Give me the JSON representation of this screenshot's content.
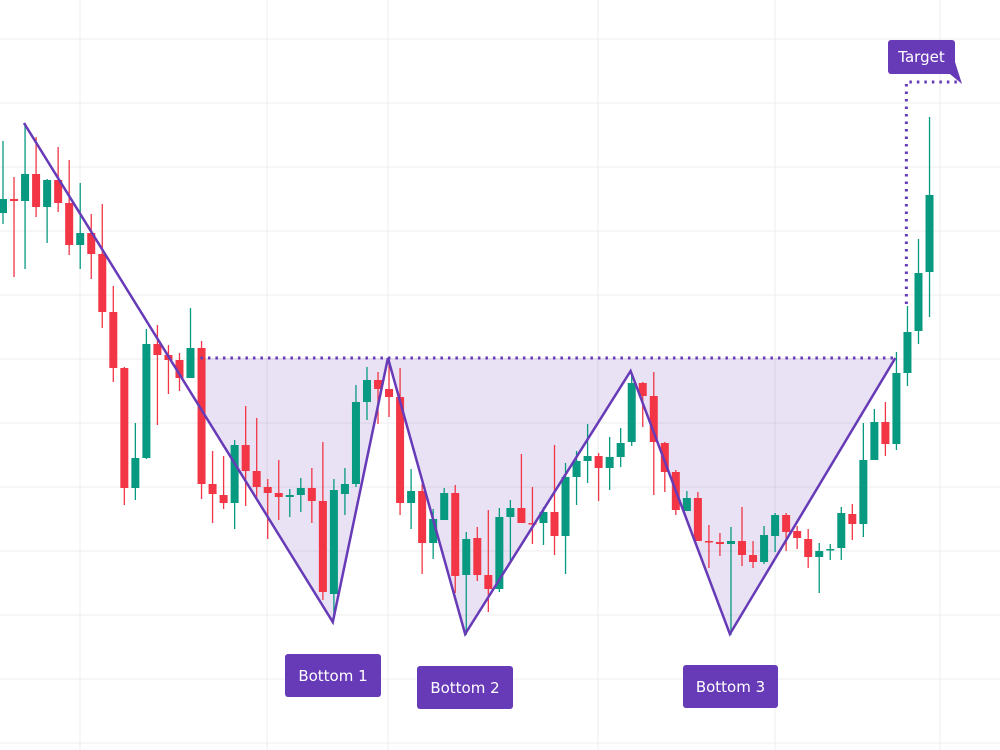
{
  "chart_data": {
    "type": "candlestick",
    "title": "",
    "xlabel": "",
    "ylabel": "",
    "grid": true,
    "colors": {
      "up": "#089981",
      "down": "#f23645",
      "pattern": "#673ab7",
      "fill": "#673ab7",
      "grid": "#ececec"
    },
    "ohlc_columns": [
      "open",
      "high",
      "low",
      "close"
    ],
    "candles": [
      [
        53.7,
        60.9,
        52.6,
        55.1
      ],
      [
        55.1,
        57.3,
        47.3,
        54.9
      ],
      [
        54.9,
        62.7,
        48.1,
        57.6
      ],
      [
        57.6,
        61.3,
        53.3,
        54.3
      ],
      [
        54.3,
        57.1,
        50.7,
        57.0
      ],
      [
        57.0,
        60.3,
        53.8,
        54.7
      ],
      [
        54.7,
        59.0,
        49.5,
        50.5
      ],
      [
        50.5,
        56.7,
        48.1,
        51.7
      ],
      [
        51.7,
        53.6,
        47.1,
        49.6
      ],
      [
        49.6,
        54.6,
        42.2,
        43.8
      ],
      [
        43.8,
        46.4,
        36.8,
        38.2
      ],
      [
        38.2,
        38.3,
        24.5,
        26.2
      ],
      [
        26.2,
        32.7,
        25.0,
        29.2
      ],
      [
        29.2,
        42.1,
        29.1,
        40.6
      ],
      [
        40.6,
        42.5,
        32.5,
        39.5
      ],
      [
        39.5,
        40.5,
        35.6,
        39.0
      ],
      [
        39.0,
        39.7,
        35.9,
        37.2
      ],
      [
        37.2,
        44.2,
        37.2,
        40.2
      ],
      [
        40.2,
        40.9,
        25.1,
        26.6
      ],
      [
        26.6,
        29.9,
        22.7,
        25.6
      ],
      [
        25.5,
        29.4,
        24.1,
        24.7
      ],
      [
        24.7,
        31.0,
        22.1,
        30.5
      ],
      [
        30.5,
        34.4,
        24.4,
        27.9
      ],
      [
        27.9,
        33.2,
        25.3,
        26.3
      ],
      [
        26.3,
        27.1,
        21.1,
        25.7
      ],
      [
        25.7,
        29.0,
        23.0,
        25.3
      ],
      [
        25.3,
        26.1,
        23.3,
        25.5
      ],
      [
        25.5,
        27.2,
        23.8,
        26.2
      ],
      [
        26.2,
        28.2,
        22.7,
        24.9
      ],
      [
        24.9,
        30.8,
        15.0,
        15.8
      ],
      [
        15.6,
        27.1,
        13.5,
        26.0
      ],
      [
        25.6,
        28.2,
        23.5,
        26.6
      ],
      [
        26.6,
        36.5,
        26.3,
        34.8
      ],
      [
        34.8,
        38.3,
        33.0,
        37.0
      ],
      [
        37.0,
        37.8,
        32.6,
        36.1
      ],
      [
        36.1,
        39.0,
        33.3,
        35.3
      ],
      [
        35.3,
        38.2,
        23.5,
        24.7
      ],
      [
        24.7,
        28.1,
        22.1,
        25.9
      ],
      [
        25.9,
        26.6,
        17.6,
        20.7
      ],
      [
        20.7,
        24.1,
        19.1,
        23.1
      ],
      [
        23.0,
        26.2,
        23.0,
        25.7
      ],
      [
        25.7,
        26.5,
        15.7,
        17.4
      ],
      [
        17.5,
        21.8,
        11.5,
        21.1
      ],
      [
        21.2,
        22.3,
        16.9,
        17.5
      ],
      [
        17.5,
        24.0,
        13.8,
        16.1
      ],
      [
        16.1,
        24.2,
        15.8,
        23.3
      ],
      [
        23.3,
        25.0,
        18.8,
        24.2
      ],
      [
        24.2,
        29.6,
        22.7,
        22.7
      ],
      [
        22.7,
        26.3,
        20.6,
        22.6
      ],
      [
        22.7,
        24.3,
        20.5,
        23.8
      ],
      [
        23.8,
        30.5,
        19.5,
        21.4
      ],
      [
        21.4,
        28.7,
        17.6,
        27.3
      ],
      [
        27.3,
        29.9,
        24.5,
        28.9
      ],
      [
        28.9,
        32.6,
        26.7,
        29.4
      ],
      [
        29.4,
        29.7,
        24.9,
        28.2
      ],
      [
        28.2,
        31.3,
        26.0,
        29.3
      ],
      [
        29.3,
        32.2,
        28.3,
        30.7
      ],
      [
        30.8,
        37.8,
        30.4,
        36.7
      ],
      [
        36.7,
        36.8,
        32.3,
        35.4
      ],
      [
        35.4,
        37.8,
        25.5,
        30.8
      ],
      [
        30.7,
        30.8,
        25.8,
        27.8
      ],
      [
        27.8,
        28.0,
        23.5,
        24.0
      ],
      [
        23.9,
        25.9,
        23.9,
        25.2
      ],
      [
        25.2,
        25.8,
        20.9,
        20.9
      ],
      [
        20.9,
        22.5,
        18.2,
        20.8
      ],
      [
        20.8,
        21.7,
        19.4,
        20.6
      ],
      [
        20.6,
        22.3,
        11.5,
        20.9
      ],
      [
        20.9,
        24.3,
        18.4,
        19.5
      ],
      [
        19.5,
        20.9,
        18.2,
        18.8
      ],
      [
        18.8,
        22.4,
        18.6,
        21.5
      ],
      [
        21.4,
        23.7,
        19.8,
        23.5
      ],
      [
        23.5,
        23.7,
        19.9,
        21.8
      ],
      [
        21.9,
        22.4,
        20.1,
        21.2
      ],
      [
        21.1,
        22.1,
        18.2,
        19.3
      ],
      [
        19.3,
        20.7,
        15.7,
        19.9
      ],
      [
        20.0,
        20.6,
        19.0,
        20.1
      ],
      [
        20.2,
        24.3,
        19.0,
        23.7
      ],
      [
        23.6,
        24.6,
        21.0,
        22.6
      ],
      [
        22.6,
        32.7,
        21.3,
        29.0
      ],
      [
        29.0,
        34.1,
        29.0,
        32.8
      ],
      [
        32.8,
        34.8,
        29.4,
        30.6
      ],
      [
        30.6,
        39.8,
        30.0,
        37.7
      ],
      [
        37.7,
        44.4,
        36.4,
        41.8
      ],
      [
        41.9,
        51.1,
        40.6,
        47.7
      ],
      [
        47.8,
        63.3,
        43.3,
        55.5
      ]
    ],
    "pattern_line": [
      [
        1.9,
        62.7
      ],
      [
        29.9,
        12.8
      ],
      [
        34.9,
        39.2
      ],
      [
        41.9,
        11.6
      ],
      [
        56.9,
        37.9
      ],
      [
        65.9,
        11.6
      ],
      [
        80.9,
        39.2
      ]
    ],
    "neckline": {
      "price": 39.2,
      "from_bar": 17.9,
      "to_bar": 80.9
    },
    "target": {
      "price": 66.8,
      "from_price": 44.6,
      "bar": 81.9,
      "end_bar": 86.9
    },
    "annotations": [
      {
        "text": "Bottom 1",
        "bar": 29.9
      },
      {
        "text": "Bottom 2",
        "bar": 41.9
      },
      {
        "text": "Bottom 3",
        "bar": 65.9
      },
      {
        "text": "Target",
        "bar": 83.0
      }
    ]
  }
}
